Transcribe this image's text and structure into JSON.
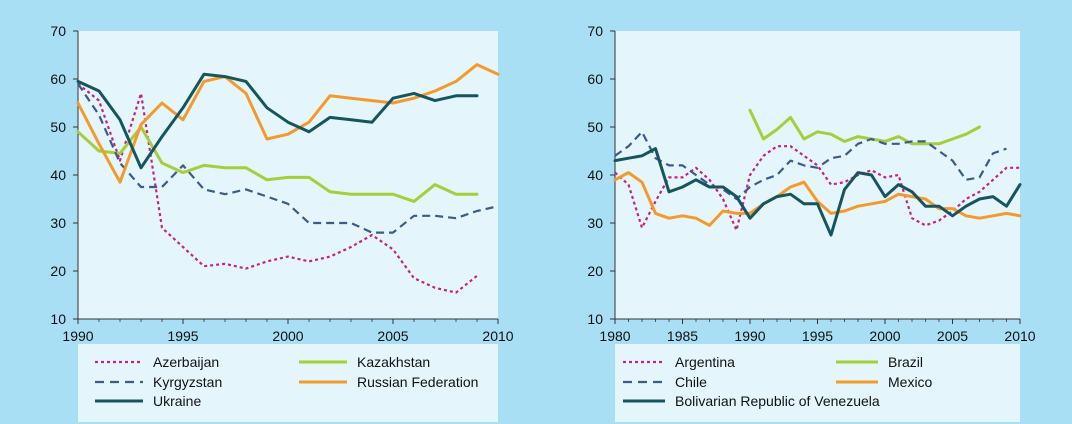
{
  "chart_data": [
    {
      "type": "line",
      "xlim": [
        1990,
        2010
      ],
      "ylim": [
        10,
        70
      ],
      "x_ticks": [
        "1990",
        "1995",
        "2000",
        "2005",
        "2010"
      ],
      "y_ticks": [
        "10",
        "20",
        "30",
        "40",
        "50",
        "60",
        "70"
      ],
      "series": [
        {
          "name": "Azerbaijan",
          "color": "#c4237e",
          "dash": "dotted",
          "points": [
            [
              1990,
              59
            ],
            [
              1991,
              55.5
            ],
            [
              1992,
              43
            ],
            [
              1993,
              57
            ],
            [
              1994,
              29
            ],
            [
              1995,
              25
            ],
            [
              1996,
              21
            ],
            [
              1997,
              21.5
            ],
            [
              1998,
              20.5
            ],
            [
              1999,
              22
            ],
            [
              2000,
              23
            ],
            [
              2001,
              22
            ],
            [
              2002,
              23
            ],
            [
              2003,
              25
            ],
            [
              2004,
              27.5
            ],
            [
              2005,
              24.5
            ],
            [
              2006,
              18.5
            ],
            [
              2007,
              16.5
            ],
            [
              2008,
              15.5
            ],
            [
              2009,
              19
            ]
          ]
        },
        {
          "name": "Kazakhstan",
          "color": "#a6ce39",
          "dash": "solid",
          "points": [
            [
              1990,
              49
            ],
            [
              1991,
              45
            ],
            [
              1992,
              44.5
            ],
            [
              1993,
              50
            ],
            [
              1994,
              42.5
            ],
            [
              1995,
              40.5
            ],
            [
              1996,
              42
            ],
            [
              1997,
              41.5
            ],
            [
              1998,
              41.5
            ],
            [
              1999,
              39
            ],
            [
              2000,
              39.5
            ],
            [
              2001,
              39.5
            ],
            [
              2002,
              36.5
            ],
            [
              2003,
              36
            ],
            [
              2004,
              36
            ],
            [
              2005,
              36
            ],
            [
              2006,
              34.5
            ],
            [
              2007,
              38
            ],
            [
              2008,
              36
            ],
            [
              2009,
              36
            ]
          ]
        },
        {
          "name": "Kyrgyzstan",
          "color": "#3c5a8c",
          "dash": "dashed",
          "points": [
            [
              1990,
              59
            ],
            [
              1991,
              52.5
            ],
            [
              1992,
              42.5
            ],
            [
              1993,
              37.5
            ],
            [
              1994,
              37.5
            ],
            [
              1995,
              42
            ],
            [
              1996,
              37
            ],
            [
              1997,
              36
            ],
            [
              1998,
              37
            ],
            [
              1999,
              35.5
            ],
            [
              2000,
              34
            ],
            [
              2001,
              30
            ],
            [
              2002,
              30
            ],
            [
              2003,
              30
            ],
            [
              2004,
              28
            ],
            [
              2005,
              28
            ],
            [
              2006,
              31.5
            ],
            [
              2007,
              31.5
            ],
            [
              2008,
              31
            ],
            [
              2009,
              32.5
            ],
            [
              2010,
              33.5
            ]
          ]
        },
        {
          "name": "Russian Federation",
          "color": "#f39a2b",
          "dash": "solid",
          "points": [
            [
              1990,
              55
            ],
            [
              1991,
              46.5
            ],
            [
              1992,
              38.5
            ],
            [
              1993,
              50.5
            ],
            [
              1994,
              55
            ],
            [
              1995,
              51.5
            ],
            [
              1996,
              59.5
            ],
            [
              1997,
              60.5
            ],
            [
              1998,
              57
            ],
            [
              1999,
              47.5
            ],
            [
              2000,
              48.5
            ],
            [
              2001,
              51
            ],
            [
              2002,
              56.5
            ],
            [
              2003,
              56
            ],
            [
              2004,
              55.5
            ],
            [
              2005,
              55
            ],
            [
              2006,
              56
            ],
            [
              2007,
              57.5
            ],
            [
              2008,
              59.5
            ],
            [
              2009,
              63
            ],
            [
              2010,
              61
            ]
          ]
        },
        {
          "name": "Ukraine",
          "color": "#17555e",
          "dash": "solid",
          "points": [
            [
              1990,
              59.5
            ],
            [
              1991,
              57.5
            ],
            [
              1992,
              51.5
            ],
            [
              1993,
              41.5
            ],
            [
              1994,
              48
            ],
            [
              1995,
              54
            ],
            [
              1996,
              61
            ],
            [
              1997,
              60.5
            ],
            [
              1998,
              59.5
            ],
            [
              1999,
              54
            ],
            [
              2000,
              51
            ],
            [
              2001,
              49
            ],
            [
              2002,
              52
            ],
            [
              2003,
              51.5
            ],
            [
              2004,
              51
            ],
            [
              2005,
              56
            ],
            [
              2006,
              57
            ],
            [
              2007,
              55.5
            ],
            [
              2008,
              56.5
            ],
            [
              2009,
              56.5
            ]
          ]
        }
      ]
    },
    {
      "type": "line",
      "xlim": [
        1980,
        2010
      ],
      "ylim": [
        10,
        70
      ],
      "x_ticks": [
        "1980",
        "1985",
        "1990",
        "1995",
        "2000",
        "2005",
        "2010"
      ],
      "y_ticks": [
        "10",
        "20",
        "30",
        "40",
        "50",
        "60",
        "70"
      ],
      "series": [
        {
          "name": "Argentina",
          "color": "#c4237e",
          "dash": "dotted",
          "points": [
            [
              1980,
              40.5
            ],
            [
              1981,
              38
            ],
            [
              1982,
              29
            ],
            [
              1983,
              34.5
            ],
            [
              1984,
              39.5
            ],
            [
              1985,
              39.5
            ],
            [
              1986,
              41.5
            ],
            [
              1987,
              39
            ],
            [
              1988,
              35
            ],
            [
              1989,
              28.5
            ],
            [
              1990,
              40
            ],
            [
              1991,
              44
            ],
            [
              1992,
              46
            ],
            [
              1993,
              46
            ],
            [
              1994,
              44
            ],
            [
              1995,
              42
            ],
            [
              1996,
              38
            ],
            [
              1997,
              38.5
            ],
            [
              1998,
              40
            ],
            [
              1999,
              41
            ],
            [
              2000,
              39.5
            ],
            [
              2001,
              40
            ],
            [
              2002,
              31
            ],
            [
              2003,
              29.5
            ],
            [
              2004,
              30.5
            ],
            [
              2005,
              32.5
            ],
            [
              2006,
              35
            ],
            [
              2007,
              36.5
            ],
            [
              2008,
              39
            ],
            [
              2009,
              41.5
            ],
            [
              2010,
              41.5
            ]
          ]
        },
        {
          "name": "Brazil",
          "color": "#a6ce39",
          "dash": "solid",
          "points": [
            [
              1990,
              53.5
            ],
            [
              1991,
              47.5
            ],
            [
              1992,
              49.5
            ],
            [
              1993,
              52
            ],
            [
              1994,
              47.5
            ],
            [
              1995,
              49
            ],
            [
              1996,
              48.5
            ],
            [
              1997,
              47
            ],
            [
              1998,
              48
            ],
            [
              1999,
              47.5
            ],
            [
              2000,
              47
            ],
            [
              2001,
              48
            ],
            [
              2002,
              46.5
            ],
            [
              2003,
              46.5
            ],
            [
              2004,
              46.5
            ],
            [
              2005,
              47.5
            ],
            [
              2006,
              48.5
            ],
            [
              2007,
              50
            ]
          ]
        },
        {
          "name": "Chile",
          "color": "#3c5a8c",
          "dash": "dashed",
          "points": [
            [
              1980,
              44
            ],
            [
              1981,
              46
            ],
            [
              1982,
              49
            ],
            [
              1983,
              43.5
            ],
            [
              1984,
              42
            ],
            [
              1985,
              42
            ],
            [
              1986,
              40
            ],
            [
              1987,
              38
            ],
            [
              1988,
              37
            ],
            [
              1989,
              35
            ],
            [
              1990,
              37.5
            ],
            [
              1991,
              39
            ],
            [
              1992,
              40
            ],
            [
              1993,
              43
            ],
            [
              1994,
              42
            ],
            [
              1995,
              41.5
            ],
            [
              1996,
              43.5
            ],
            [
              1997,
              44
            ],
            [
              1998,
              46.5
            ],
            [
              1999,
              47.5
            ],
            [
              2000,
              46.5
            ],
            [
              2001,
              46.5
            ],
            [
              2002,
              47
            ],
            [
              2003,
              47
            ],
            [
              2004,
              45
            ],
            [
              2005,
              43
            ],
            [
              2006,
              39
            ],
            [
              2007,
              39.5
            ],
            [
              2008,
              44.5
            ],
            [
              2009,
              45.5
            ]
          ]
        },
        {
          "name": "Mexico",
          "color": "#f39a2b",
          "dash": "solid",
          "points": [
            [
              1980,
              39
            ],
            [
              1981,
              40.5
            ],
            [
              1982,
              38.5
            ],
            [
              1983,
              32
            ],
            [
              1984,
              31
            ],
            [
              1985,
              31.5
            ],
            [
              1986,
              31
            ],
            [
              1987,
              29.5
            ],
            [
              1988,
              32.5
            ],
            [
              1989,
              32
            ],
            [
              1990,
              32
            ],
            [
              1991,
              34
            ],
            [
              1992,
              35.5
            ],
            [
              1993,
              37.5
            ],
            [
              1994,
              38.5
            ],
            [
              1995,
              34.5
            ],
            [
              1996,
              32
            ],
            [
              1997,
              32.5
            ],
            [
              1998,
              33.5
            ],
            [
              1999,
              34
            ],
            [
              2000,
              34.5
            ],
            [
              2001,
              36
            ],
            [
              2002,
              35.5
            ],
            [
              2003,
              35
            ],
            [
              2004,
              33
            ],
            [
              2005,
              33
            ],
            [
              2006,
              31.5
            ],
            [
              2007,
              31
            ],
            [
              2008,
              31.5
            ],
            [
              2009,
              32
            ],
            [
              2010,
              31.5
            ]
          ]
        },
        {
          "name": "Bolivarian Republic of Venezuela",
          "color": "#17555e",
          "dash": "solid",
          "points": [
            [
              1980,
              43
            ],
            [
              1981,
              43.5
            ],
            [
              1982,
              44
            ],
            [
              1983,
              45.5
            ],
            [
              1984,
              36.5
            ],
            [
              1985,
              37.5
            ],
            [
              1986,
              39
            ],
            [
              1987,
              37.5
            ],
            [
              1988,
              37.5
            ],
            [
              1989,
              35.5
            ],
            [
              1990,
              31
            ],
            [
              1991,
              34
            ],
            [
              1992,
              35.5
            ],
            [
              1993,
              36
            ],
            [
              1994,
              34
            ],
            [
              1995,
              34
            ],
            [
              1996,
              27.5
            ],
            [
              1997,
              37
            ],
            [
              1998,
              40.5
            ],
            [
              1999,
              40
            ],
            [
              2000,
              35.5
            ],
            [
              2001,
              38
            ],
            [
              2002,
              36.5
            ],
            [
              2003,
              33.5
            ],
            [
              2004,
              33.5
            ],
            [
              2005,
              31.5
            ],
            [
              2006,
              33.5
            ],
            [
              2007,
              35
            ],
            [
              2008,
              35.5
            ],
            [
              2009,
              33.5
            ],
            [
              2010,
              38
            ]
          ]
        }
      ]
    }
  ]
}
